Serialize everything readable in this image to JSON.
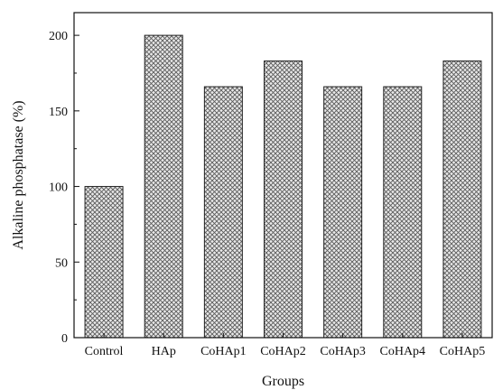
{
  "chart_data": {
    "type": "bar",
    "title": "",
    "xlabel": "Groups",
    "ylabel": "Alkaline phosphatase (%)",
    "categories": [
      "Control",
      "HAp",
      "CoHAp1",
      "CoHAp2",
      "CoHAp3",
      "CoHAp4",
      "CoHAp5"
    ],
    "values": [
      100,
      200,
      166,
      183,
      166,
      166,
      183
    ],
    "ylim": [
      0,
      215
    ],
    "yticks": [
      0,
      50,
      100,
      150,
      200
    ],
    "grid": false,
    "legend": "none",
    "bar_fill": "crosshatch",
    "colors": {
      "bar_fill": "#e9e9e9",
      "hatch": "#5a5a5a",
      "bar_edge": "#222222",
      "axis": "#111111",
      "text": "#111111"
    }
  }
}
